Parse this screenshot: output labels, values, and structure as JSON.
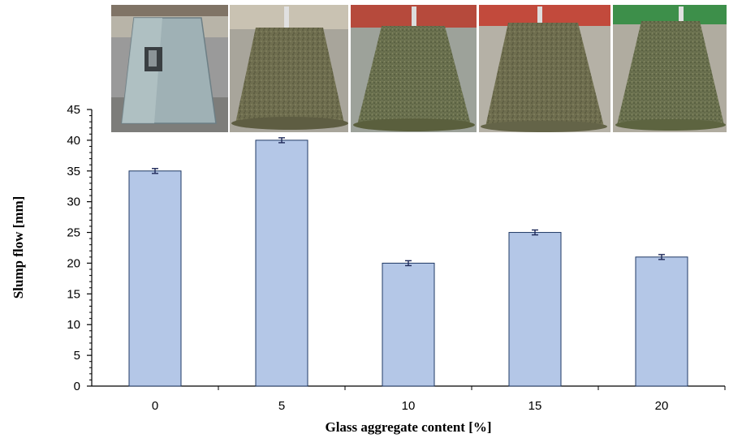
{
  "chart_data": {
    "type": "bar",
    "categories": [
      "0",
      "5",
      "10",
      "15",
      "20"
    ],
    "values": [
      35,
      40,
      20,
      25,
      21
    ],
    "error": [
      0.4,
      0.4,
      0.4,
      0.4,
      0.4
    ],
    "xlabel": "Glass aggregate content [%]",
    "ylabel": "Slump flow [mm]",
    "ylim": [
      0,
      45
    ],
    "yticks": [
      0,
      5,
      10,
      15,
      20,
      25,
      30,
      35,
      40,
      45
    ],
    "bar_color": "#b4c7e7",
    "bar_edge_color": "#1f3864",
    "grid": false
  },
  "photos": [
    {
      "name": "slump-cone-photo"
    },
    {
      "name": "slump-sample-0-photo"
    },
    {
      "name": "slump-sample-10-photo"
    },
    {
      "name": "slump-sample-15-photo"
    },
    {
      "name": "slump-sample-20-photo"
    }
  ]
}
